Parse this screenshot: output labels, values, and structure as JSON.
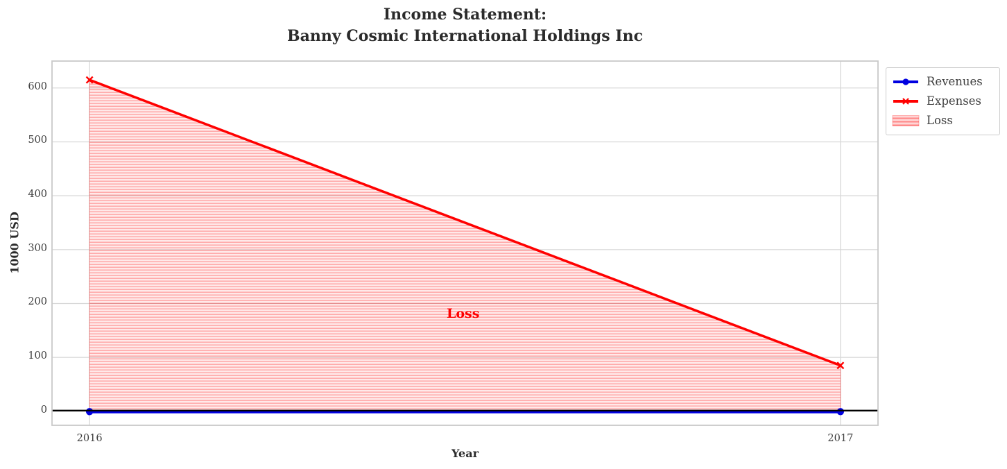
{
  "title": {
    "line1": "Income Statement:",
    "line2": "Banny Cosmic International Holdings Inc"
  },
  "chart_data": {
    "type": "line",
    "x": [
      2016,
      2017
    ],
    "series": [
      {
        "name": "Revenues",
        "values": [
          0,
          0
        ],
        "color": "#0000e0",
        "marker": "circle",
        "linewidth": 4
      },
      {
        "name": "Expenses",
        "values": [
          615,
          85
        ],
        "color": "#ff0000",
        "marker": "x",
        "linewidth": 3.5
      }
    ],
    "fill_between": {
      "label": "Loss",
      "upper_series": "Expenses",
      "lower_series": "Revenues",
      "color": "#ff0000",
      "style": "horizontal hatch, light alpha"
    },
    "annotation": {
      "text": "Loss",
      "x": 2016.5,
      "y": 177,
      "color": "#ff0000"
    },
    "xlabel": "Year",
    "ylabel": "1000 USD",
    "xtick_labels": [
      "2016",
      "2017"
    ],
    "xtick_values": [
      2016,
      2017
    ],
    "yticks": [
      0,
      100,
      200,
      300,
      400,
      500,
      600
    ],
    "xlim": [
      2015.95,
      2017.05
    ],
    "ylim": [
      -26,
      650
    ],
    "grid": true,
    "zero_line_color": "#000000",
    "legend": {
      "location": "outside upper right",
      "entries": [
        "Revenues",
        "Expenses",
        "Loss"
      ]
    },
    "colors": {
      "grid": "#d6d6d6",
      "spine": "#c9c9c9",
      "title_text": "#2b2b2b",
      "tick_text": "#3d3d3d"
    }
  }
}
